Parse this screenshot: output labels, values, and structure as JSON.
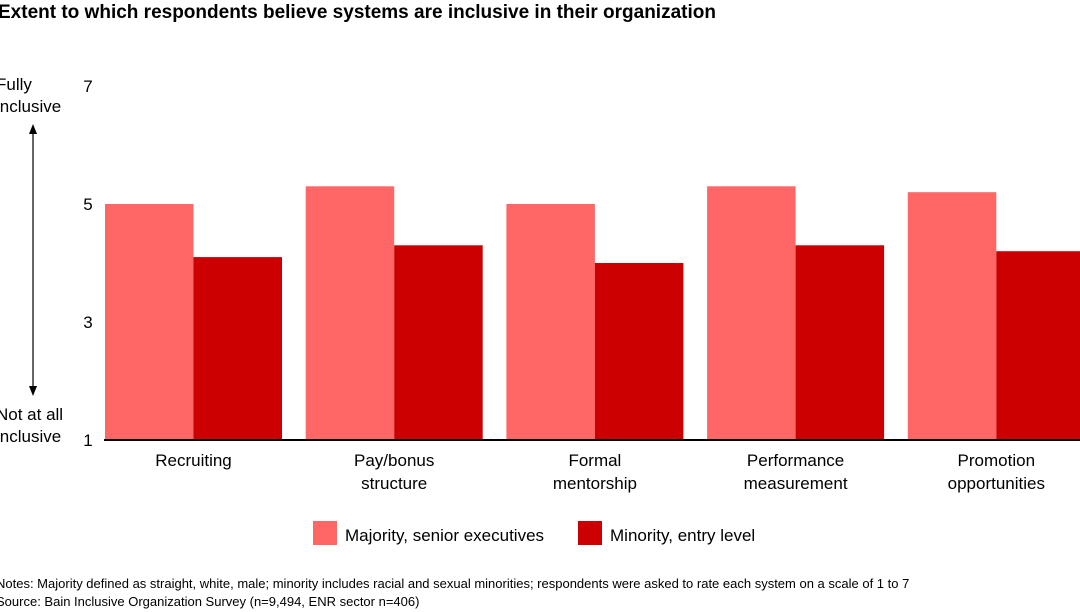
{
  "chart_data": {
    "type": "bar",
    "title": "Extent to which respondents believe systems are inclusive in their organization",
    "categories": [
      "Recruiting",
      "Pay/bonus\nstructure",
      "Formal\nmentorship",
      "Performance\nmeasurement",
      "Promotion\nopportunities"
    ],
    "series": [
      {
        "name": "Majority, senior executives",
        "color": "#ff6666",
        "values": [
          5.0,
          5.3,
          5.0,
          5.3,
          5.2
        ]
      },
      {
        "name": "Minority, entry level",
        "color": "#cc0000",
        "values": [
          4.1,
          4.3,
          4.0,
          4.3,
          4.2
        ]
      }
    ],
    "ylim": [
      1,
      7
    ],
    "yticks": [
      1,
      3,
      5,
      7
    ],
    "y_top_label": "Fully\ninclusive",
    "y_bottom_label": "Not at all\ninclusive",
    "grid": false,
    "legend_position": "bottom"
  },
  "notes": "Notes: Majority defined as straight, white, male; minority includes racial and sexual minorities; respondents were asked to rate each system on a scale of 1 to 7",
  "source": "Source: Bain Inclusive Organization Survey (n=9,494, ENR sector n=406)"
}
